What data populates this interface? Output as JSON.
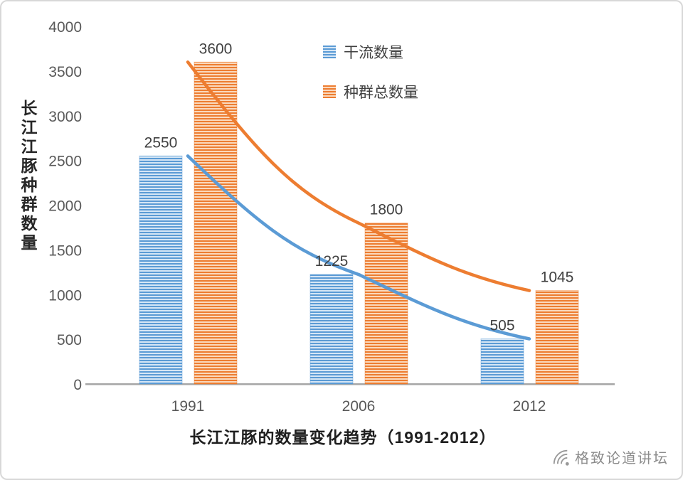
{
  "chart_data": {
    "type": "bar",
    "title": "长江江豚的数量变化趋势（1991-2012）",
    "ylabel": "长江江豚种群数量",
    "categories": [
      "1991",
      "2006",
      "2012"
    ],
    "series": [
      {
        "name": "干流数量",
        "color": "#5B9BD5",
        "tint": "#D6E6F5",
        "values": [
          2550,
          1225,
          505
        ]
      },
      {
        "name": "种群总数量",
        "color": "#ED7D31",
        "tint": "#FAD9BD",
        "values": [
          3600,
          1800,
          1045
        ]
      }
    ],
    "yticks": [
      0,
      500,
      1000,
      1500,
      2000,
      2500,
      3000,
      3500,
      4000
    ],
    "ylim": [
      0,
      4000
    ],
    "grid": false,
    "legend_position": "top-center",
    "trendlines": true,
    "axis_color": "#a6a6a6",
    "label_color": "#404040"
  },
  "watermark": {
    "text": "格致论道讲坛"
  }
}
